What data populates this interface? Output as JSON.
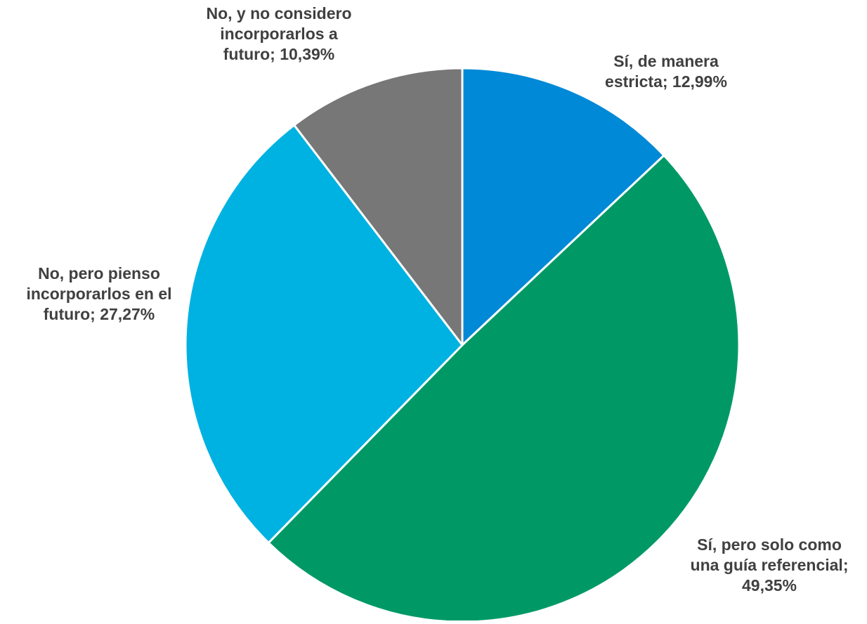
{
  "chart_data": {
    "type": "pie",
    "title": "",
    "start_angle_deg": 0,
    "direction": "clockwise",
    "slice_border_color": "#ffffff",
    "label_color": "#404040",
    "slices": [
      {
        "label": "Sí, de manera estricta",
        "value": 12.99,
        "value_text": "12,99%",
        "color": "#0089d6",
        "label_lines": [
          "Sí, de manera",
          "estricta; 12,99%"
        ]
      },
      {
        "label": "Sí, pero solo como una guía referencial",
        "value": 49.35,
        "value_text": "49,35%",
        "color": "#009966",
        "label_lines": [
          "Sí, pero solo como",
          "una guía referencial;",
          "49,35%"
        ]
      },
      {
        "label": "No, pero pienso incorporarlos en el futuro",
        "value": 27.27,
        "value_text": "27,27%",
        "color": "#00b2e1",
        "label_lines": [
          "No, pero pienso",
          "incorporarlos en el",
          "futuro; 27,27%"
        ]
      },
      {
        "label": "No, y no considero incorporarlos a futuro",
        "value": 10.39,
        "value_text": "10,39%",
        "color": "#777777",
        "label_lines": [
          "No, y no considero",
          "incorporarlos a",
          "futuro; 10,39%"
        ]
      }
    ]
  }
}
